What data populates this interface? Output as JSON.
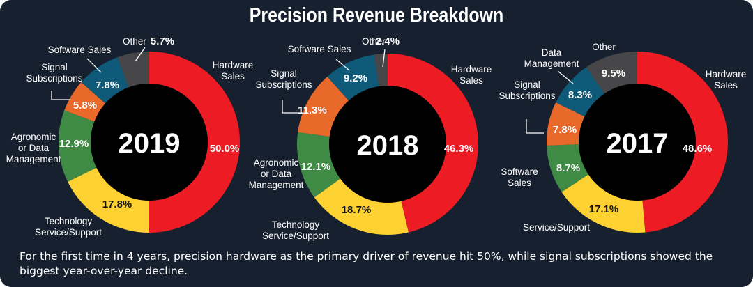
{
  "title": "Precision Revenue Breakdown",
  "caption": "For the first time in 4 years, precision hardware as the primary driver of revenue hit 50%, while signal subscriptions showed the biggest year-over-year decline.",
  "colors": {
    "background": "#17202e",
    "hardware": "#ed1c24",
    "service": "#fdd131",
    "agronomic": "#3f8a45",
    "signal": "#e9692a",
    "software": "#0e5a78",
    "other": "#474749",
    "center": "#000000"
  },
  "chart_data": [
    {
      "type": "pie",
      "variant": "donut",
      "year_label": "2019",
      "slices": [
        {
          "key": "hardware",
          "label": "Hardware Sales",
          "value": 50.0,
          "pct_label": "50.0%",
          "color": "#ed1c24",
          "text_color": "#ffffff"
        },
        {
          "key": "service",
          "label": "Technology Service/Support",
          "value": 17.8,
          "pct_label": "17.8%",
          "color": "#fdd131",
          "text_color": "#111111"
        },
        {
          "key": "agronomic",
          "label": "Agronomic or Data Management",
          "value": 12.9,
          "pct_label": "12.9%",
          "color": "#3f8a45",
          "text_color": "#ffffff"
        },
        {
          "key": "signal",
          "label": "Signal Subscriptions",
          "value": 5.8,
          "pct_label": "5.8%",
          "color": "#e9692a",
          "text_color": "#ffffff"
        },
        {
          "key": "software",
          "label": "Software Sales",
          "value": 7.8,
          "pct_label": "7.8%",
          "color": "#0e5a78",
          "text_color": "#ffffff"
        },
        {
          "key": "other",
          "label": "Other",
          "value": 5.7,
          "pct_label": "5.7%",
          "color": "#474749",
          "text_color": "#ffffff"
        }
      ]
    },
    {
      "type": "pie",
      "variant": "donut",
      "year_label": "2018",
      "slices": [
        {
          "key": "hardware",
          "label": "Hardware Sales",
          "value": 46.3,
          "pct_label": "46.3%",
          "color": "#ed1c24",
          "text_color": "#ffffff"
        },
        {
          "key": "service",
          "label": "Technology Service/Support",
          "value": 18.7,
          "pct_label": "18.7%",
          "color": "#fdd131",
          "text_color": "#111111"
        },
        {
          "key": "agronomic",
          "label": "Agronomic or Data Management",
          "value": 12.1,
          "pct_label": "12.1%",
          "color": "#3f8a45",
          "text_color": "#ffffff"
        },
        {
          "key": "signal",
          "label": "Signal Subscriptions",
          "value": 11.3,
          "pct_label": "11.3%",
          "color": "#e9692a",
          "text_color": "#ffffff"
        },
        {
          "key": "software",
          "label": "Software Sales",
          "value": 9.2,
          "pct_label": "9.2%",
          "color": "#0e5a78",
          "text_color": "#ffffff"
        },
        {
          "key": "other",
          "label": "Other",
          "value": 2.4,
          "pct_label": "2.4%",
          "color": "#474749",
          "text_color": "#ffffff"
        }
      ]
    },
    {
      "type": "pie",
      "variant": "donut",
      "year_label": "2017",
      "slices": [
        {
          "key": "hardware",
          "label": "Hardware Sales",
          "value": 48.6,
          "pct_label": "48.6%",
          "color": "#ed1c24",
          "text_color": "#ffffff"
        },
        {
          "key": "service",
          "label": "Service/Support",
          "value": 17.1,
          "pct_label": "17.1%",
          "color": "#fdd131",
          "text_color": "#111111"
        },
        {
          "key": "software",
          "label": "Software Sales",
          "value": 8.7,
          "pct_label": "8.7%",
          "color": "#3f8a45",
          "text_color": "#ffffff"
        },
        {
          "key": "signal",
          "label": "Signal Subscriptions",
          "value": 7.8,
          "pct_label": "7.8%",
          "color": "#e9692a",
          "text_color": "#ffffff"
        },
        {
          "key": "data_management",
          "label": "Data Management",
          "value": 8.3,
          "pct_label": "8.3%",
          "color": "#0e5a78",
          "text_color": "#ffffff"
        },
        {
          "key": "other",
          "label": "Other",
          "value": 9.5,
          "pct_label": "9.5%",
          "color": "#474749",
          "text_color": "#ffffff"
        }
      ]
    }
  ],
  "labels": {
    "2019": {
      "hardware": [
        "Hardware",
        "Sales"
      ],
      "service": [
        "Technology",
        "Service/Support"
      ],
      "agronomic": [
        "Agronomic",
        "or Data",
        "Management"
      ],
      "signal": [
        "Signal",
        "Subscriptions"
      ],
      "software": [
        "Software Sales"
      ],
      "other": [
        "Other"
      ]
    },
    "2018": {
      "hardware": [
        "Hardware",
        "Sales"
      ],
      "service": [
        "Technology",
        "Service/Support"
      ],
      "agronomic": [
        "Agronomic",
        "or Data",
        "Management"
      ],
      "signal": [
        "Signal",
        "Subscriptions"
      ],
      "software": [
        "Software Sales"
      ],
      "other": [
        "Other"
      ]
    },
    "2017": {
      "hardware": [
        "Hardware",
        "Sales"
      ],
      "service": [
        "Service/Support"
      ],
      "software": [
        "Software",
        "Sales"
      ],
      "signal": [
        "Signal",
        "Subscriptions"
      ],
      "data_management": [
        "Data",
        "Management"
      ],
      "other": [
        "Other"
      ]
    }
  }
}
